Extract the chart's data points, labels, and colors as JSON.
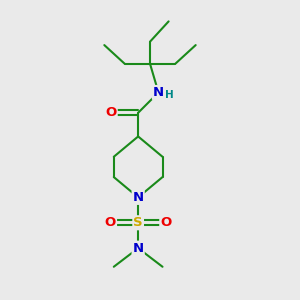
{
  "bg_color": "#eaeaea",
  "atom_colors": {
    "C": "#1a8a1a",
    "N": "#0000cc",
    "O": "#ee0000",
    "S": "#ccaa00",
    "H": "#008888"
  },
  "bond_color": "#1a8a1a",
  "bond_width": 1.5,
  "font_size_atom": 8.5
}
